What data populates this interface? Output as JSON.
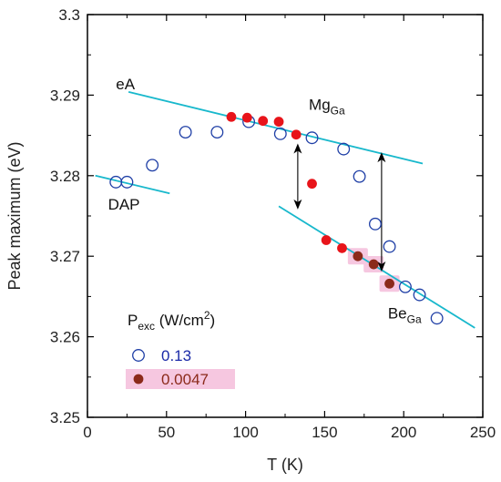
{
  "chart_data": {
    "type": "scatter",
    "xlabel": "T (K)",
    "ylabel": "Peak maximum (eV)",
    "xlim": [
      0,
      250
    ],
    "ylim": [
      3.25,
      3.3
    ],
    "xticks": [
      "0",
      "50",
      "100",
      "150",
      "200",
      "250"
    ],
    "yticks": [
      "3.25",
      "3.26",
      "3.27",
      "3.28",
      "3.29",
      "3.3"
    ],
    "grid": false,
    "colors": {
      "open_marker": "#1f3fa6",
      "red_marker": "#e8141a",
      "brown_marker": "#8b2a1a",
      "fit_line": "#18b8cc",
      "highlight": "#f6c7e0",
      "legend_blue": "#1b2aa8",
      "legend_red": "#8b2a1a"
    },
    "series": [
      {
        "name": "0.13",
        "marker": "open-circle",
        "color": "#1f3fa6",
        "x": [
          18,
          25,
          41,
          62,
          82,
          102,
          122,
          142,
          162,
          172,
          182,
          191,
          201,
          210,
          221
        ],
        "y": [
          3.2792,
          3.2792,
          3.2813,
          3.2854,
          3.2854,
          3.2867,
          3.2852,
          3.2847,
          3.2833,
          3.2799,
          3.274,
          3.2712,
          3.2662,
          3.2652,
          3.2623
        ]
      },
      {
        "name": "0.0047",
        "marker": "filled-circle",
        "points": [
          {
            "x": 91,
            "y": 3.2873,
            "color": "#e8141a",
            "highlight": false
          },
          {
            "x": 101,
            "y": 3.2872,
            "color": "#e8141a",
            "highlight": false
          },
          {
            "x": 111,
            "y": 3.2868,
            "color": "#e8141a",
            "highlight": false
          },
          {
            "x": 121,
            "y": 3.2867,
            "color": "#e8141a",
            "highlight": false
          },
          {
            "x": 132,
            "y": 3.2851,
            "color": "#e8141a",
            "highlight": false
          },
          {
            "x": 142,
            "y": 3.279,
            "color": "#e8141a",
            "highlight": false
          },
          {
            "x": 151,
            "y": 3.272,
            "color": "#e8141a",
            "highlight": false
          },
          {
            "x": 161,
            "y": 3.271,
            "color": "#e8141a",
            "highlight": false
          },
          {
            "x": 171,
            "y": 3.27,
            "color": "#8b2a1a",
            "highlight": true
          },
          {
            "x": 181,
            "y": 3.269,
            "color": "#8b2a1a",
            "highlight": true
          },
          {
            "x": 191,
            "y": 3.2666,
            "color": "#8b2a1a",
            "highlight": true
          }
        ]
      }
    ],
    "fit_lines": [
      {
        "label": "eA",
        "x": [
          26,
          212
        ],
        "y": [
          3.2904,
          3.2815
        ]
      },
      {
        "label": "DAP",
        "x": [
          5,
          52
        ],
        "y": [
          3.28,
          3.2778
        ]
      },
      {
        "label": "Be_Ga",
        "x": [
          121,
          245
        ],
        "y": [
          3.2762,
          3.2611
        ]
      }
    ],
    "annotations": {
      "eA": {
        "text": "eA",
        "x": 18,
        "y": 3.2907
      },
      "mg": {
        "main": "Mg",
        "sub": "Ga",
        "x": 140,
        "y": 3.2882
      },
      "dap": {
        "text": "DAP",
        "x": 13,
        "y": 3.2758
      },
      "be": {
        "main": "Be",
        "sub": "Ga",
        "x": 190,
        "y": 3.2623
      }
    },
    "double_arrows": [
      {
        "x": 133,
        "y_top": 3.284,
        "y_bottom": 3.2758
      },
      {
        "x": 186,
        "y_top": 3.2829,
        "y_bottom": 3.2681
      }
    ],
    "legend": {
      "title_main": "P",
      "title_sub": "exc",
      "title_rest": " (W/cm",
      "title_sup": "2",
      "title_end": ")",
      "placement": "bottom-left",
      "entries": [
        {
          "label": "0.13",
          "marker": "open-circle",
          "color": "#1f3fa6",
          "text_color": "#1b2aa8",
          "highlight": false
        },
        {
          "label": "0.0047",
          "marker": "filled-circle",
          "color": "#8b2a1a",
          "text_color": "#8b2a1a",
          "highlight": true
        }
      ]
    }
  }
}
